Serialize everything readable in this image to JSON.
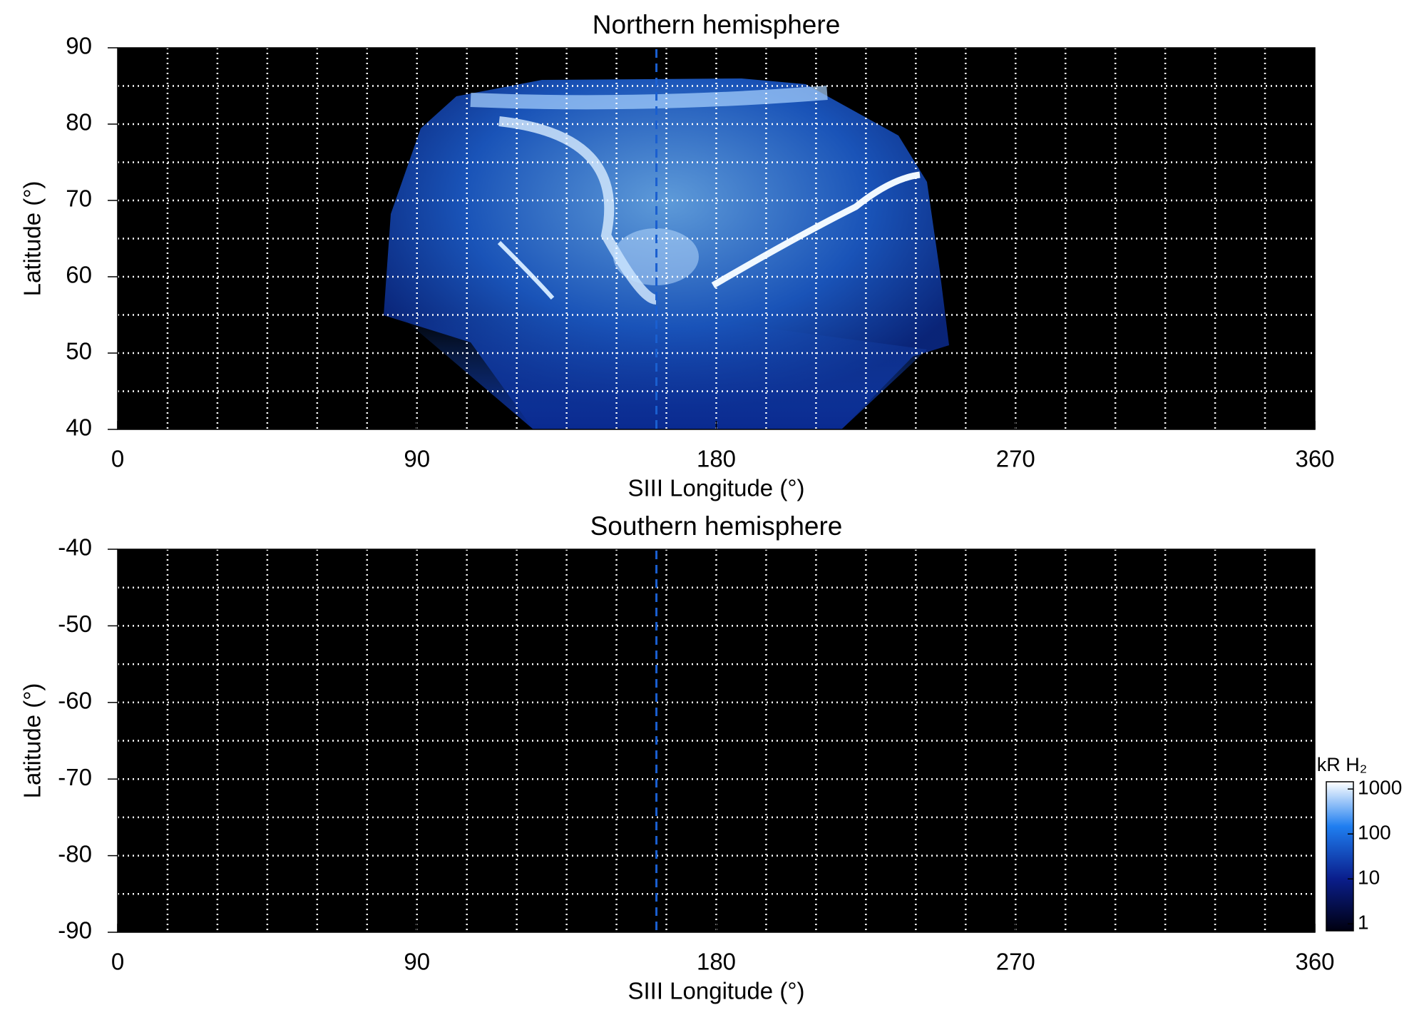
{
  "chart_data": [
    {
      "type": "heatmap",
      "title": "Northern hemisphere",
      "xlabel": "SIII Longitude (°)",
      "ylabel": "Latitude (°)",
      "xlim": [
        0,
        360
      ],
      "xticks": [
        0,
        90,
        180,
        270,
        360
      ],
      "ylim": [
        40,
        90
      ],
      "yticks": [
        40,
        50,
        60,
        70,
        80,
        90
      ],
      "xgrid": [
        15,
        30,
        45,
        60,
        75,
        90,
        105,
        120,
        135,
        150,
        165,
        180,
        195,
        210,
        225,
        240,
        255,
        270,
        285,
        300,
        315,
        330,
        345
      ],
      "ygrid": [
        45,
        50,
        55,
        60,
        65,
        70,
        75,
        80,
        85
      ],
      "reference_longitude": 162,
      "reference_color": "#1a5fd0"
    },
    {
      "type": "heatmap",
      "title": "Southern hemisphere",
      "xlabel": "SIII Longitude (°)",
      "ylabel": "Latitude (°)",
      "xlim": [
        0,
        360
      ],
      "xticks": [
        0,
        90,
        180,
        270,
        360
      ],
      "ylim": [
        -90,
        -40
      ],
      "yticks": [
        -40,
        -50,
        -60,
        -70,
        -80,
        -90
      ],
      "xgrid": [
        15,
        30,
        45,
        60,
        75,
        90,
        105,
        120,
        135,
        150,
        165,
        180,
        195,
        210,
        225,
        240,
        255,
        270,
        285,
        300,
        315,
        330,
        345
      ],
      "ygrid": [
        -45,
        -50,
        -55,
        -60,
        -65,
        -70,
        -75,
        -80,
        -85
      ],
      "reference_longitude": 162,
      "reference_color": "#1a5fd0",
      "colorbar": {
        "label": "kR H₂",
        "log": true,
        "lim": [
          0.7,
          1450
        ],
        "ticks": [
          1,
          10,
          100,
          1000
        ]
      }
    }
  ]
}
